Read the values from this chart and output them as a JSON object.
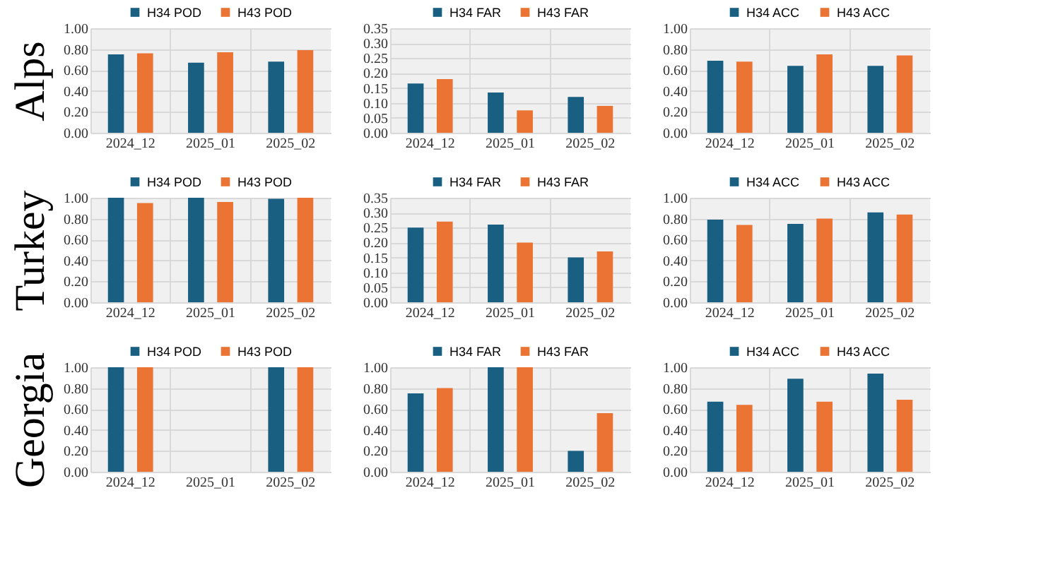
{
  "chart_data": [
    {
      "type": "bar",
      "ylabel": "Alps",
      "categories": [
        "2024_12",
        "2025_01",
        "2025_02"
      ],
      "series": [
        {
          "name": "H34 POD",
          "color": "#185f82",
          "values": [
            0.75,
            0.67,
            0.68
          ]
        },
        {
          "name": "H43 POD",
          "color": "#eb7434",
          "values": [
            0.76,
            0.77,
            0.79
          ]
        }
      ],
      "ylim": [
        0,
        1
      ],
      "yticks": [
        {
          "value": 0,
          "label": "0.00"
        },
        {
          "value": 0.2,
          "label": "0.20"
        },
        {
          "value": 0.4,
          "label": "0.40"
        },
        {
          "value": 0.6,
          "label": "0.60"
        },
        {
          "value": 0.8,
          "label": "0.80"
        },
        {
          "value": 1,
          "label": "1.00"
        }
      ],
      "grid": true,
      "legend": "top"
    },
    {
      "type": "bar",
      "categories": [
        "2024_12",
        "2025_01",
        "2025_02"
      ],
      "series": [
        {
          "name": "H34 FAR",
          "color": "#185f82",
          "values": [
            0.165,
            0.135,
            0.12
          ]
        },
        {
          "name": "H43 FAR",
          "color": "#eb7434",
          "values": [
            0.18,
            0.075,
            0.09
          ]
        }
      ],
      "ylim": [
        0,
        0.35
      ],
      "yticks": [
        {
          "value": 0,
          "label": "0.00"
        },
        {
          "value": 0.05,
          "label": "0.05"
        },
        {
          "value": 0.1,
          "label": "0.10"
        },
        {
          "value": 0.15,
          "label": "0.15"
        },
        {
          "value": 0.2,
          "label": "0.20"
        },
        {
          "value": 0.25,
          "label": "0.25"
        },
        {
          "value": 0.3,
          "label": "0.30"
        },
        {
          "value": 0.35,
          "label": "0.35"
        }
      ],
      "grid": true,
      "legend": "top"
    },
    {
      "type": "bar",
      "categories": [
        "2024_12",
        "2025_01",
        "2025_02"
      ],
      "series": [
        {
          "name": "H34 ACC",
          "color": "#185f82",
          "values": [
            0.69,
            0.64,
            0.64
          ]
        },
        {
          "name": "H43 ACC",
          "color": "#eb7434",
          "values": [
            0.68,
            0.75,
            0.74
          ]
        }
      ],
      "ylim": [
        0,
        1
      ],
      "yticks": [
        {
          "value": 0,
          "label": "0.00"
        },
        {
          "value": 0.2,
          "label": "0.20"
        },
        {
          "value": 0.4,
          "label": "0.40"
        },
        {
          "value": 0.6,
          "label": "0.60"
        },
        {
          "value": 0.8,
          "label": "0.80"
        },
        {
          "value": 1,
          "label": "1.00"
        }
      ],
      "grid": true,
      "legend": "top"
    },
    {
      "type": "bar",
      "ylabel": "Turkey",
      "categories": [
        "2024_12",
        "2025_01",
        "2025_02"
      ],
      "series": [
        {
          "name": "H34 POD",
          "color": "#185f82",
          "values": [
            1.0,
            1.0,
            0.99
          ]
        },
        {
          "name": "H43 POD",
          "color": "#eb7434",
          "values": [
            0.95,
            0.96,
            1.0
          ]
        }
      ],
      "ylim": [
        0,
        1
      ],
      "yticks": [
        {
          "value": 0,
          "label": "0.00"
        },
        {
          "value": 0.2,
          "label": "0.20"
        },
        {
          "value": 0.4,
          "label": "0.40"
        },
        {
          "value": 0.6,
          "label": "0.60"
        },
        {
          "value": 0.8,
          "label": "0.80"
        },
        {
          "value": 1,
          "label": "1.00"
        }
      ],
      "grid": true,
      "legend": "top"
    },
    {
      "type": "bar",
      "categories": [
        "2024_12",
        "2025_01",
        "2025_02"
      ],
      "series": [
        {
          "name": "H34 FAR",
          "color": "#185f82",
          "values": [
            0.25,
            0.26,
            0.15
          ]
        },
        {
          "name": "H43 FAR",
          "color": "#eb7434",
          "values": [
            0.27,
            0.2,
            0.17
          ]
        }
      ],
      "ylim": [
        0,
        0.35
      ],
      "yticks": [
        {
          "value": 0,
          "label": "0.00"
        },
        {
          "value": 0.05,
          "label": "0.05"
        },
        {
          "value": 0.1,
          "label": "0.10"
        },
        {
          "value": 0.15,
          "label": "0.15"
        },
        {
          "value": 0.2,
          "label": "0.20"
        },
        {
          "value": 0.25,
          "label": "0.25"
        },
        {
          "value": 0.3,
          "label": "0.30"
        },
        {
          "value": 0.35,
          "label": "0.35"
        }
      ],
      "grid": true,
      "legend": "top"
    },
    {
      "type": "bar",
      "categories": [
        "2024_12",
        "2025_01",
        "2025_02"
      ],
      "series": [
        {
          "name": "H34 ACC",
          "color": "#185f82",
          "values": [
            0.79,
            0.75,
            0.86
          ]
        },
        {
          "name": "H43 ACC",
          "color": "#eb7434",
          "values": [
            0.74,
            0.8,
            0.84
          ]
        }
      ],
      "ylim": [
        0,
        1
      ],
      "yticks": [
        {
          "value": 0,
          "label": "0.00"
        },
        {
          "value": 0.2,
          "label": "0.20"
        },
        {
          "value": 0.4,
          "label": "0.40"
        },
        {
          "value": 0.6,
          "label": "0.60"
        },
        {
          "value": 0.8,
          "label": "0.80"
        },
        {
          "value": 1,
          "label": "1.00"
        }
      ],
      "grid": true,
      "legend": "top"
    },
    {
      "type": "bar",
      "ylabel": "Georgia",
      "categories": [
        "2024_12",
        "2025_01",
        "2025_02"
      ],
      "series": [
        {
          "name": "H34 POD",
          "color": "#185f82",
          "values": [
            1.0,
            null,
            1.0
          ]
        },
        {
          "name": "H43 POD",
          "color": "#eb7434",
          "values": [
            1.0,
            null,
            1.0
          ]
        }
      ],
      "ylim": [
        0,
        1
      ],
      "yticks": [
        {
          "value": 0,
          "label": "0.00"
        },
        {
          "value": 0.2,
          "label": "0.20"
        },
        {
          "value": 0.4,
          "label": "0.40"
        },
        {
          "value": 0.6,
          "label": "0.60"
        },
        {
          "value": 0.8,
          "label": "0.80"
        },
        {
          "value": 1,
          "label": "1.00"
        }
      ],
      "grid": true,
      "legend": "top"
    },
    {
      "type": "bar",
      "categories": [
        "2024_12",
        "2025_01",
        "2025_02"
      ],
      "series": [
        {
          "name": "H34 FAR",
          "color": "#185f82",
          "values": [
            0.75,
            1.0,
            0.2
          ]
        },
        {
          "name": "H43 FAR",
          "color": "#eb7434",
          "values": [
            0.8,
            1.0,
            0.56
          ]
        }
      ],
      "ylim": [
        0,
        1
      ],
      "yticks": [
        {
          "value": 0,
          "label": "0.00"
        },
        {
          "value": 0.2,
          "label": "0.20"
        },
        {
          "value": 0.4,
          "label": "0.40"
        },
        {
          "value": 0.6,
          "label": "0.60"
        },
        {
          "value": 0.8,
          "label": "0.80"
        },
        {
          "value": 1,
          "label": "1.00"
        }
      ],
      "grid": true,
      "legend": "top"
    },
    {
      "type": "bar",
      "categories": [
        "2024_12",
        "2025_01",
        "2025_02"
      ],
      "series": [
        {
          "name": "H34 ACC",
          "color": "#185f82",
          "values": [
            0.67,
            0.89,
            0.94
          ]
        },
        {
          "name": "H43 ACC",
          "color": "#eb7434",
          "values": [
            0.64,
            0.67,
            0.69
          ]
        }
      ],
      "ylim": [
        0,
        1
      ],
      "yticks": [
        {
          "value": 0,
          "label": "0.00"
        },
        {
          "value": 0.2,
          "label": "0.20"
        },
        {
          "value": 0.4,
          "label": "0.40"
        },
        {
          "value": 0.6,
          "label": "0.60"
        },
        {
          "value": 0.8,
          "label": "0.80"
        },
        {
          "value": 1,
          "label": "1.00"
        }
      ],
      "grid": true,
      "legend": "top"
    }
  ]
}
